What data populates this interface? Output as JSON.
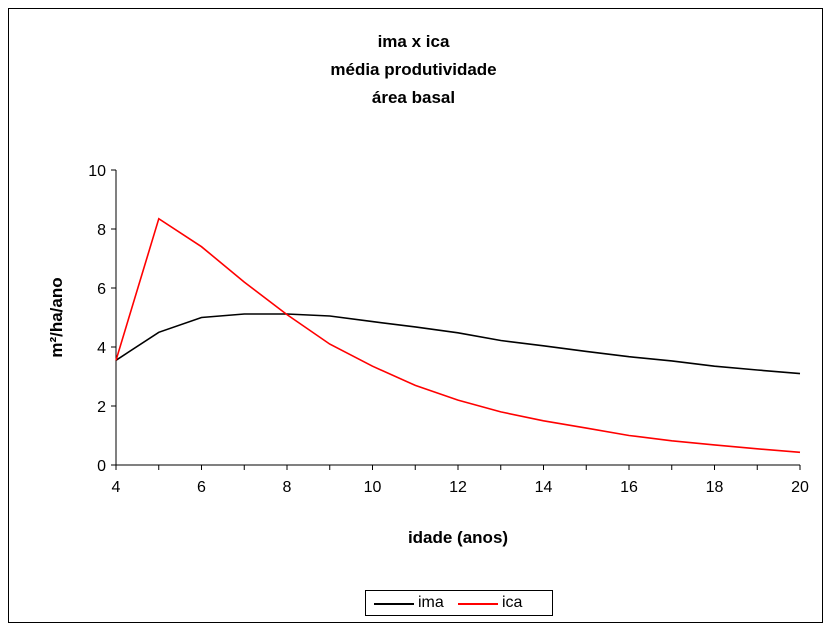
{
  "chart_data": {
    "type": "line",
    "title": [
      "ima x ica",
      "média produtividade",
      "área basal"
    ],
    "xlabel": "idade (anos)",
    "ylabel": "m²/ha/ano",
    "xlim": [
      4,
      20
    ],
    "ylim": [
      0,
      10
    ],
    "xticks": [
      4,
      6,
      8,
      10,
      12,
      14,
      16,
      18,
      20
    ],
    "yticks": [
      0,
      2,
      4,
      6,
      8,
      10
    ],
    "grid": false,
    "legend_position": "bottom",
    "x": [
      4,
      5,
      6,
      7,
      8,
      9,
      10,
      11,
      12,
      13,
      14,
      15,
      16,
      17,
      18,
      19,
      20
    ],
    "series": [
      {
        "name": "ima",
        "color": "#000000",
        "values": [
          3.55,
          4.5,
          5.0,
          5.12,
          5.12,
          5.05,
          4.86,
          4.68,
          4.48,
          4.22,
          4.04,
          3.85,
          3.67,
          3.53,
          3.35,
          3.22,
          3.1
        ]
      },
      {
        "name": "ica",
        "color": "#ff0000",
        "values": [
          3.55,
          8.35,
          7.4,
          6.2,
          5.1,
          4.1,
          3.35,
          2.7,
          2.2,
          1.8,
          1.5,
          1.25,
          1.0,
          0.82,
          0.68,
          0.55,
          0.43
        ]
      }
    ]
  }
}
